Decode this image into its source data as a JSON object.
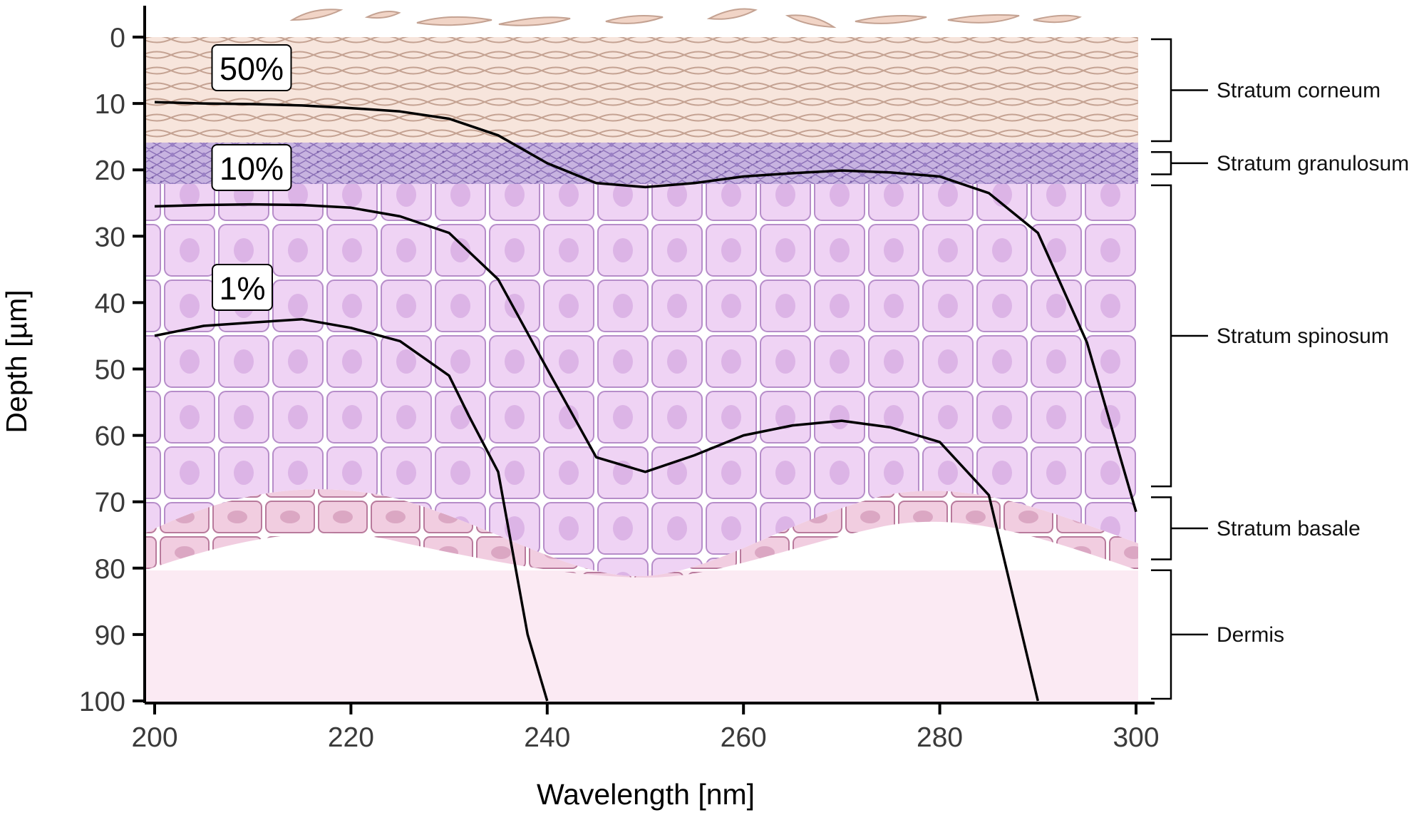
{
  "chart_data": {
    "type": "line",
    "xlabel": "Wavelength [nm]",
    "ylabel": "Depth [µm]",
    "xlim": [
      200,
      300
    ],
    "ylim": [
      0,
      100
    ],
    "y_inverted": true,
    "x_ticks": [
      200,
      220,
      240,
      260,
      280,
      300
    ],
    "y_ticks": [
      0,
      10,
      20,
      30,
      40,
      50,
      60,
      70,
      80,
      90,
      100
    ],
    "grid": false,
    "legend": "inline labels at left",
    "series": [
      {
        "name": "50%",
        "x": [
          200,
          205,
          210,
          215,
          220,
          225,
          230,
          235,
          240,
          245,
          250,
          255,
          260,
          265,
          270,
          275,
          280,
          285,
          290,
          295,
          300
        ],
        "y": [
          9.8,
          10.0,
          10.1,
          10.3,
          10.7,
          11.2,
          12.3,
          14.8,
          19.0,
          22.0,
          22.6,
          22.0,
          21.0,
          20.5,
          20.1,
          20.4,
          21.0,
          23.5,
          29.5,
          46.0,
          71.5
        ]
      },
      {
        "name": "10%",
        "x": [
          200,
          205,
          210,
          215,
          220,
          225,
          230,
          235,
          240,
          245,
          250,
          255,
          260,
          265,
          270,
          275,
          280,
          285,
          290
        ],
        "y": [
          25.5,
          25.3,
          25.2,
          25.3,
          25.7,
          27.0,
          29.5,
          36.5,
          50.0,
          63.3,
          65.5,
          63.0,
          60.0,
          58.5,
          57.8,
          58.8,
          61.0,
          69.0,
          100
        ]
      },
      {
        "name": "1%",
        "x": [
          200,
          205,
          210,
          215,
          220,
          225,
          230,
          232,
          235,
          238,
          240
        ],
        "y": [
          45.0,
          43.5,
          43.0,
          42.5,
          43.8,
          45.8,
          51.0,
          57.0,
          65.5,
          90.0,
          100
        ]
      }
    ],
    "layers": [
      {
        "name": "Stratum corneum",
        "from": 0,
        "to": 16
      },
      {
        "name": "Stratum granulosum",
        "from": 17,
        "to": 21
      },
      {
        "name": "Stratum spinosum",
        "from": 22,
        "to": 68
      },
      {
        "name": "Stratum basale",
        "from": 69,
        "to": 79
      },
      {
        "name": "Dermis",
        "from": 80,
        "to": 100
      }
    ]
  },
  "colors": {
    "corneum_fill": "#f7e5dc",
    "corneum_line": "#c4a292",
    "granulosum_fill": "#c7b3e0",
    "spinosum_fill": "#edd0f2",
    "spinosum_line": "#b68dc9",
    "basale_fill": "#f1cde0",
    "dermis_fill": "#fbeaf3",
    "curve": "#000000"
  }
}
